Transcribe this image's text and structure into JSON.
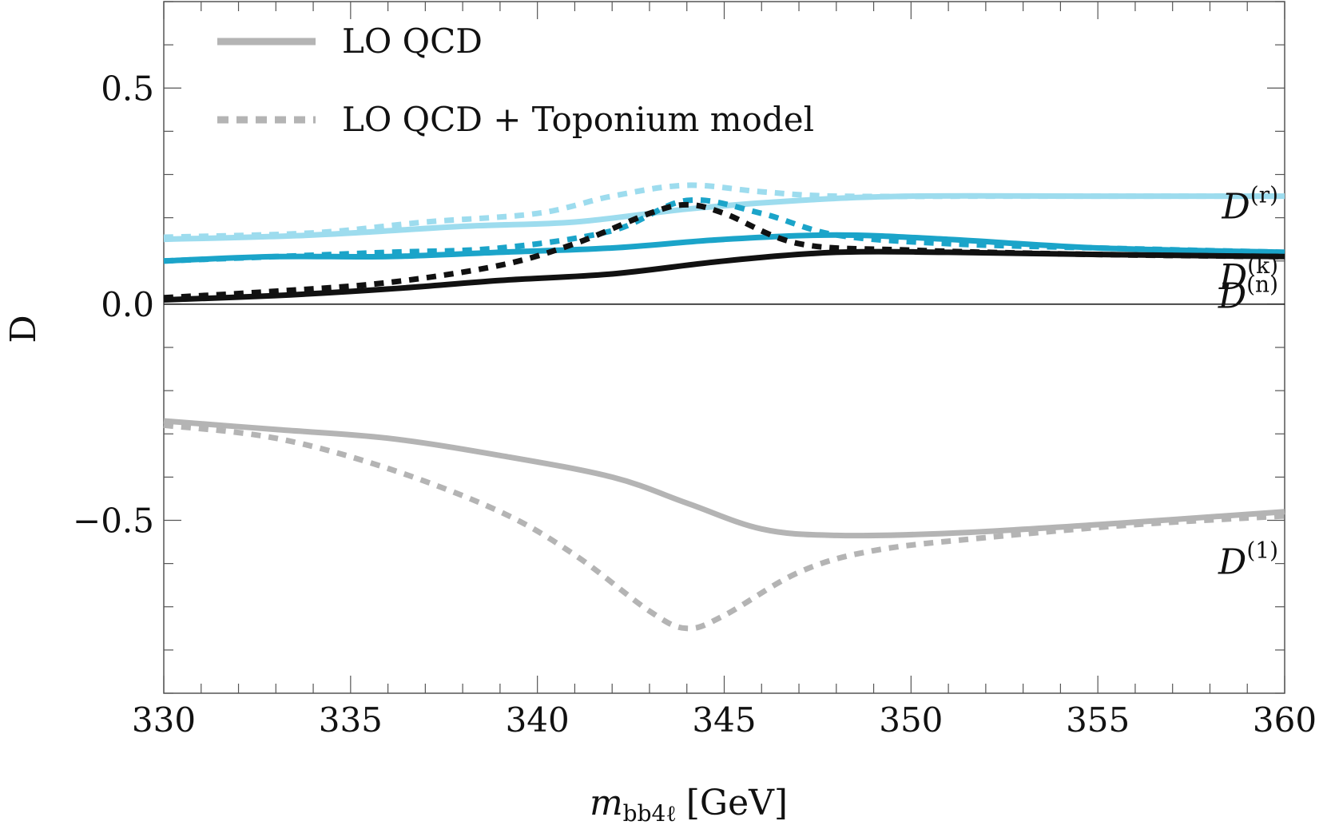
{
  "chart_data": {
    "type": "line",
    "title": "",
    "xlabel_main": "m",
    "xlabel_sub": "bb4ℓ",
    "xlabel_unit": "[GeV]",
    "ylabel": "D",
    "xlim": [
      330,
      360
    ],
    "ylim": [
      -0.9,
      0.7
    ],
    "x_ticks": [
      330,
      335,
      340,
      345,
      350,
      355,
      360
    ],
    "x_tick_labels": [
      "330",
      "335",
      "340",
      "345",
      "350",
      "355",
      "360"
    ],
    "y_ticks": [
      -0.5,
      0.0,
      0.5
    ],
    "y_tick_labels": [
      "−0.5",
      "0.0",
      "0.5"
    ],
    "grid": false,
    "legend_position": "top-left",
    "legend": [
      {
        "label": "LO QCD",
        "style": "solid",
        "color": "#b4b4b4"
      },
      {
        "label": "LO QCD + Toponium model",
        "style": "dashed",
        "color": "#b4b4b4"
      }
    ],
    "series": [
      {
        "name": "D(r)",
        "label_main": "D",
        "label_sup": "(r)",
        "variant": "LO QCD",
        "color": "#9ddcee",
        "style": "solid",
        "x": [
          330,
          334,
          338,
          341,
          344,
          347,
          350,
          355,
          360
        ],
        "y": [
          0.15,
          0.16,
          0.18,
          0.19,
          0.22,
          0.24,
          0.25,
          0.25,
          0.25
        ]
      },
      {
        "name": "D(r)",
        "label_main": "D",
        "label_sup": "(r)",
        "variant": "LO QCD + Toponium model",
        "color": "#9ddcee",
        "style": "dashed",
        "x": [
          330,
          334,
          337,
          340,
          342,
          344,
          346,
          348,
          352,
          356,
          360
        ],
        "y": [
          0.155,
          0.165,
          0.19,
          0.21,
          0.25,
          0.275,
          0.26,
          0.25,
          0.25,
          0.25,
          0.25
        ]
      },
      {
        "name": "D(k)",
        "label_main": "D",
        "label_sup": "(k)",
        "variant": "LO QCD",
        "color": "#1ba4c9",
        "style": "solid",
        "x": [
          330,
          333,
          336,
          339,
          342,
          345,
          348,
          351,
          355,
          360
        ],
        "y": [
          0.1,
          0.11,
          0.11,
          0.12,
          0.13,
          0.15,
          0.16,
          0.15,
          0.13,
          0.12
        ]
      },
      {
        "name": "D(k)",
        "label_main": "D",
        "label_sup": "(k)",
        "variant": "LO QCD + Toponium model",
        "color": "#1ba4c9",
        "style": "dashed",
        "x": [
          330,
          333,
          336,
          339,
          342,
          344,
          346,
          348,
          351,
          355,
          360
        ],
        "y": [
          0.1,
          0.11,
          0.12,
          0.13,
          0.17,
          0.24,
          0.21,
          0.16,
          0.14,
          0.13,
          0.12
        ]
      },
      {
        "name": "D(n)",
        "label_main": "D",
        "label_sup": "(n)",
        "variant": "LO QCD",
        "color": "#111111",
        "style": "solid",
        "x": [
          330,
          333,
          336,
          339,
          342,
          345,
          348,
          351,
          355,
          360
        ],
        "y": [
          0.01,
          0.02,
          0.035,
          0.055,
          0.07,
          0.1,
          0.12,
          0.12,
          0.115,
          0.11
        ]
      },
      {
        "name": "D(n)",
        "label_main": "D",
        "label_sup": "(n)",
        "variant": "LO QCD + Toponium model",
        "color": "#111111",
        "style": "dashed",
        "x": [
          330,
          333,
          336,
          339,
          341,
          343,
          344,
          345,
          347,
          350,
          355,
          360
        ],
        "y": [
          0.015,
          0.03,
          0.05,
          0.09,
          0.14,
          0.21,
          0.23,
          0.21,
          0.14,
          0.125,
          0.115,
          0.11
        ]
      },
      {
        "name": "D(1)",
        "label_main": "D",
        "label_sup": "(1)",
        "variant": "LO QCD",
        "color": "#b4b4b4",
        "style": "solid",
        "x": [
          330,
          333,
          336,
          339,
          342,
          344,
          346,
          348,
          351,
          355,
          360
        ],
        "y": [
          -0.27,
          -0.29,
          -0.31,
          -0.35,
          -0.4,
          -0.46,
          -0.52,
          -0.535,
          -0.53,
          -0.51,
          -0.48
        ]
      },
      {
        "name": "D(1)",
        "label_main": "D",
        "label_sup": "(1)",
        "variant": "LO QCD + Toponium model",
        "color": "#b4b4b4",
        "style": "dashed",
        "x": [
          330,
          333,
          336,
          339,
          341,
          343,
          344,
          345,
          347,
          349,
          352,
          356,
          360
        ],
        "y": [
          -0.28,
          -0.31,
          -0.38,
          -0.48,
          -0.58,
          -0.71,
          -0.75,
          -0.72,
          -0.62,
          -0.57,
          -0.54,
          -0.51,
          -0.49
        ]
      }
    ]
  }
}
